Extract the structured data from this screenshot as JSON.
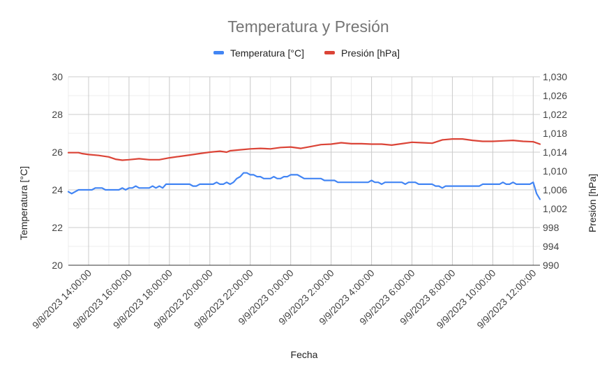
{
  "chart_data": {
    "type": "line",
    "title": "Temperatura y Presión",
    "xlabel": "Fecha",
    "ylabel_left": "Temperatura [°C]",
    "ylabel_right": "Presión [hPa]",
    "legend_position": "top",
    "grid": true,
    "x_tick_labels": [
      "9/8/2023 14:00:00",
      "9/8/2023 16:00:00",
      "9/8/2023 18:00:00",
      "9/8/2023 20:00:00",
      "9/8/2023 22:00:00",
      "9/9/2023 0:00:00",
      "9/9/2023 2:00:00",
      "9/9/2023 4:00:00",
      "9/9/2023 6:00:00",
      "9/9/2023 8:00:00",
      "9/9/2023 10:00:00",
      "9/9/2023 12:00:00"
    ],
    "x_start": "9/8/2023 13:00:00",
    "x_end": "9/9/2023 12:20:00",
    "y_left": {
      "min": 20,
      "max": 30,
      "ticks": [
        "20",
        "22",
        "24",
        "26",
        "28",
        "30"
      ]
    },
    "y_right": {
      "min": 990,
      "max": 1030,
      "ticks": [
        "990",
        "994",
        "998",
        "1,002",
        "1,006",
        "1,010",
        "1,014",
        "1,018",
        "1,022",
        "1,026",
        "1,030"
      ]
    },
    "series": [
      {
        "name": "Temperatura [°C]",
        "color": "#4285f4",
        "axis": "left",
        "points": [
          [
            "9/8/2023 13:00",
            23.9
          ],
          [
            "9/8/2023 13:10",
            23.8
          ],
          [
            "9/8/2023 13:20",
            23.9
          ],
          [
            "9/8/2023 13:30",
            24.0
          ],
          [
            "9/8/2023 13:50",
            24.0
          ],
          [
            "9/8/2023 14:00",
            24.0
          ],
          [
            "9/8/2023 14:10",
            24.0
          ],
          [
            "9/8/2023 14:20",
            24.1
          ],
          [
            "9/8/2023 14:40",
            24.1
          ],
          [
            "9/8/2023 14:50",
            24.0
          ],
          [
            "9/8/2023 15:30",
            24.0
          ],
          [
            "9/8/2023 15:40",
            24.1
          ],
          [
            "9/8/2023 15:50",
            24.0
          ],
          [
            "9/8/2023 16:00",
            24.1
          ],
          [
            "9/8/2023 16:10",
            24.1
          ],
          [
            "9/8/2023 16:20",
            24.2
          ],
          [
            "9/8/2023 16:30",
            24.1
          ],
          [
            "9/8/2023 17:00",
            24.1
          ],
          [
            "9/8/2023 17:10",
            24.2
          ],
          [
            "9/8/2023 17:20",
            24.1
          ],
          [
            "9/8/2023 17:30",
            24.2
          ],
          [
            "9/8/2023 17:40",
            24.1
          ],
          [
            "9/8/2023 17:50",
            24.3
          ],
          [
            "9/8/2023 18:00",
            24.3
          ],
          [
            "9/8/2023 19:00",
            24.3
          ],
          [
            "9/8/2023 19:10",
            24.2
          ],
          [
            "9/8/2023 19:20",
            24.2
          ],
          [
            "9/8/2023 19:30",
            24.3
          ],
          [
            "9/8/2023 20:10",
            24.3
          ],
          [
            "9/8/2023 20:20",
            24.4
          ],
          [
            "9/8/2023 20:30",
            24.3
          ],
          [
            "9/8/2023 20:40",
            24.3
          ],
          [
            "9/8/2023 20:50",
            24.4
          ],
          [
            "9/8/2023 21:00",
            24.3
          ],
          [
            "9/8/2023 21:10",
            24.4
          ],
          [
            "9/8/2023 21:20",
            24.6
          ],
          [
            "9/8/2023 21:30",
            24.7
          ],
          [
            "9/8/2023 21:40",
            24.9
          ],
          [
            "9/8/2023 21:50",
            24.9
          ],
          [
            "9/8/2023 22:00",
            24.8
          ],
          [
            "9/8/2023 22:10",
            24.8
          ],
          [
            "9/8/2023 22:20",
            24.7
          ],
          [
            "9/8/2023 22:30",
            24.7
          ],
          [
            "9/8/2023 22:40",
            24.6
          ],
          [
            "9/8/2023 23:00",
            24.6
          ],
          [
            "9/8/2023 23:10",
            24.7
          ],
          [
            "9/8/2023 23:20",
            24.6
          ],
          [
            "9/8/2023 23:30",
            24.6
          ],
          [
            "9/8/2023 23:40",
            24.7
          ],
          [
            "9/8/2023 23:50",
            24.7
          ],
          [
            "9/9/2023 0:00",
            24.8
          ],
          [
            "9/9/2023 0:20",
            24.8
          ],
          [
            "9/9/2023 0:30",
            24.7
          ],
          [
            "9/9/2023 0:40",
            24.6
          ],
          [
            "9/9/2023 1:30",
            24.6
          ],
          [
            "9/9/2023 1:40",
            24.5
          ],
          [
            "9/9/2023 2:10",
            24.5
          ],
          [
            "9/9/2023 2:20",
            24.4
          ],
          [
            "9/9/2023 3:50",
            24.4
          ],
          [
            "9/9/2023 4:00",
            24.5
          ],
          [
            "9/9/2023 4:10",
            24.4
          ],
          [
            "9/9/2023 4:20",
            24.4
          ],
          [
            "9/9/2023 4:30",
            24.3
          ],
          [
            "9/9/2023 4:40",
            24.4
          ],
          [
            "9/9/2023 5:30",
            24.4
          ],
          [
            "9/9/2023 5:40",
            24.3
          ],
          [
            "9/9/2023 5:50",
            24.4
          ],
          [
            "9/9/2023 6:10",
            24.4
          ],
          [
            "9/9/2023 6:20",
            24.3
          ],
          [
            "9/9/2023 7:00",
            24.3
          ],
          [
            "9/9/2023 7:10",
            24.2
          ],
          [
            "9/9/2023 7:20",
            24.2
          ],
          [
            "9/9/2023 7:30",
            24.1
          ],
          [
            "9/9/2023 7:40",
            24.2
          ],
          [
            "9/9/2023 9:20",
            24.2
          ],
          [
            "9/9/2023 9:30",
            24.3
          ],
          [
            "9/9/2023 10:20",
            24.3
          ],
          [
            "9/9/2023 10:30",
            24.4
          ],
          [
            "9/9/2023 10:40",
            24.3
          ],
          [
            "9/9/2023 10:50",
            24.3
          ],
          [
            "9/9/2023 11:00",
            24.4
          ],
          [
            "9/9/2023 11:10",
            24.3
          ],
          [
            "9/9/2023 11:50",
            24.3
          ],
          [
            "9/9/2023 12:00",
            24.4
          ],
          [
            "9/9/2023 12:10",
            23.8
          ],
          [
            "9/9/2023 12:20",
            23.5
          ]
        ]
      },
      {
        "name": "Presión [hPa]",
        "color": "#db4437",
        "axis": "right",
        "points": [
          [
            "9/8/2023 13:00",
            1013.9
          ],
          [
            "9/8/2023 13:30",
            1013.9
          ],
          [
            "9/8/2023 13:40",
            1013.7
          ],
          [
            "9/8/2023 14:00",
            1013.5
          ],
          [
            "9/8/2023 14:30",
            1013.3
          ],
          [
            "9/8/2023 15:00",
            1013.0
          ],
          [
            "9/8/2023 15:20",
            1012.5
          ],
          [
            "9/8/2023 15:40",
            1012.3
          ],
          [
            "9/8/2023 16:00",
            1012.4
          ],
          [
            "9/8/2023 16:30",
            1012.6
          ],
          [
            "9/8/2023 17:00",
            1012.4
          ],
          [
            "9/8/2023 17:30",
            1012.4
          ],
          [
            "9/8/2023 18:00",
            1012.8
          ],
          [
            "9/8/2023 18:30",
            1013.1
          ],
          [
            "9/8/2023 19:00",
            1013.4
          ],
          [
            "9/8/2023 19:30",
            1013.7
          ],
          [
            "9/8/2023 20:00",
            1014.0
          ],
          [
            "9/8/2023 20:30",
            1014.2
          ],
          [
            "9/8/2023 20:50",
            1014.0
          ],
          [
            "9/8/2023 21:00",
            1014.3
          ],
          [
            "9/8/2023 21:30",
            1014.5
          ],
          [
            "9/8/2023 22:00",
            1014.7
          ],
          [
            "9/8/2023 22:30",
            1014.8
          ],
          [
            "9/8/2023 23:00",
            1014.7
          ],
          [
            "9/8/2023 23:30",
            1015.0
          ],
          [
            "9/9/2023 0:00",
            1015.1
          ],
          [
            "9/9/2023 0:30",
            1014.8
          ],
          [
            "9/9/2023 1:00",
            1015.2
          ],
          [
            "9/9/2023 1:30",
            1015.6
          ],
          [
            "9/9/2023 2:00",
            1015.7
          ],
          [
            "9/9/2023 2:30",
            1016.0
          ],
          [
            "9/9/2023 3:00",
            1015.8
          ],
          [
            "9/9/2023 3:30",
            1015.8
          ],
          [
            "9/9/2023 4:00",
            1015.7
          ],
          [
            "9/9/2023 4:30",
            1015.7
          ],
          [
            "9/9/2023 5:00",
            1015.5
          ],
          [
            "9/9/2023 5:30",
            1015.8
          ],
          [
            "9/9/2023 6:00",
            1016.1
          ],
          [
            "9/9/2023 6:30",
            1016.0
          ],
          [
            "9/9/2023 7:00",
            1015.9
          ],
          [
            "9/9/2023 7:30",
            1016.6
          ],
          [
            "9/9/2023 8:00",
            1016.8
          ],
          [
            "9/9/2023 8:30",
            1016.8
          ],
          [
            "9/9/2023 9:00",
            1016.5
          ],
          [
            "9/9/2023 9:30",
            1016.3
          ],
          [
            "9/9/2023 10:00",
            1016.3
          ],
          [
            "9/9/2023 10:30",
            1016.4
          ],
          [
            "9/9/2023 11:00",
            1016.5
          ],
          [
            "9/9/2023 11:30",
            1016.3
          ],
          [
            "9/9/2023 12:00",
            1016.2
          ],
          [
            "9/9/2023 12:20",
            1015.7
          ]
        ]
      }
    ]
  }
}
